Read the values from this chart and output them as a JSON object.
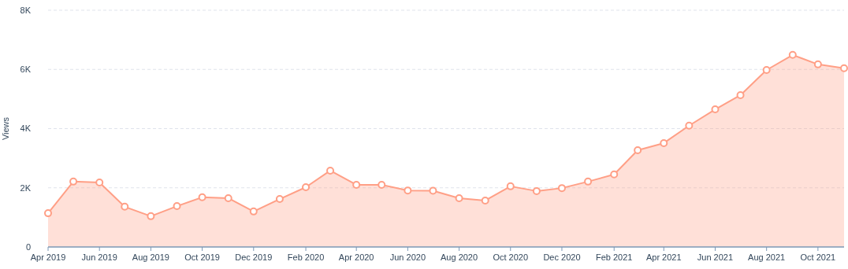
{
  "chart_data": {
    "type": "area",
    "ylabel": "Views",
    "x": [
      "2019-04",
      "2019-05",
      "2019-06",
      "2019-07",
      "2019-08",
      "2019-09",
      "2019-10",
      "2019-11",
      "2019-12",
      "2020-01",
      "2020-02",
      "2020-03",
      "2020-04",
      "2020-05",
      "2020-06",
      "2020-07",
      "2020-08",
      "2020-09",
      "2020-10",
      "2020-11",
      "2020-12",
      "2021-01",
      "2021-02",
      "2021-03",
      "2021-04",
      "2021-05",
      "2021-06",
      "2021-07",
      "2021-08",
      "2021-09",
      "2021-10",
      "2021-11"
    ],
    "series": [
      {
        "color": "#ff9f86",
        "values": [
          1140,
          2210,
          2180,
          1360,
          1040,
          1380,
          1680,
          1650,
          1200,
          1620,
          2020,
          2580,
          2100,
          2100,
          1910,
          1900,
          1650,
          1570,
          2050,
          1890,
          1990,
          2210,
          2450,
          3270,
          3510,
          4100,
          4650,
          5130,
          5980,
          6490,
          6170,
          6040
        ]
      }
    ],
    "xlim": [
      "2019-04",
      "2021-11"
    ],
    "xticks": [
      {
        "value": "2019-04",
        "label": "Apr 2019"
      },
      {
        "value": "2019-06",
        "label": "Jun 2019"
      },
      {
        "value": "2019-08",
        "label": "Aug 2019"
      },
      {
        "value": "2019-10",
        "label": "Oct 2019"
      },
      {
        "value": "2019-12",
        "label": "Dec 2019"
      },
      {
        "value": "2020-02",
        "label": "Feb 2020"
      },
      {
        "value": "2020-04",
        "label": "Apr 2020"
      },
      {
        "value": "2020-06",
        "label": "Jun 2020"
      },
      {
        "value": "2020-08",
        "label": "Aug 2020"
      },
      {
        "value": "2020-10",
        "label": "Oct 2020"
      },
      {
        "value": "2020-12",
        "label": "Dec 2020"
      },
      {
        "value": "2021-02",
        "label": "Feb 2021"
      },
      {
        "value": "2021-04",
        "label": "Apr 2021"
      },
      {
        "value": "2021-06",
        "label": "Jun 2021"
      },
      {
        "value": "2021-08",
        "label": "Aug 2021"
      },
      {
        "value": "2021-10",
        "label": "Oct 2021"
      }
    ],
    "ylim": [
      0,
      8000
    ],
    "yticks": [
      0,
      {
        "value": 2000,
        "label": "2K"
      },
      {
        "value": 4000,
        "label": "4K"
      },
      {
        "value": 6000,
        "label": "6K"
      },
      {
        "value": 8000,
        "label": "8K"
      }
    ],
    "grid": "y",
    "marker": "circle",
    "line_style": "solid"
  }
}
